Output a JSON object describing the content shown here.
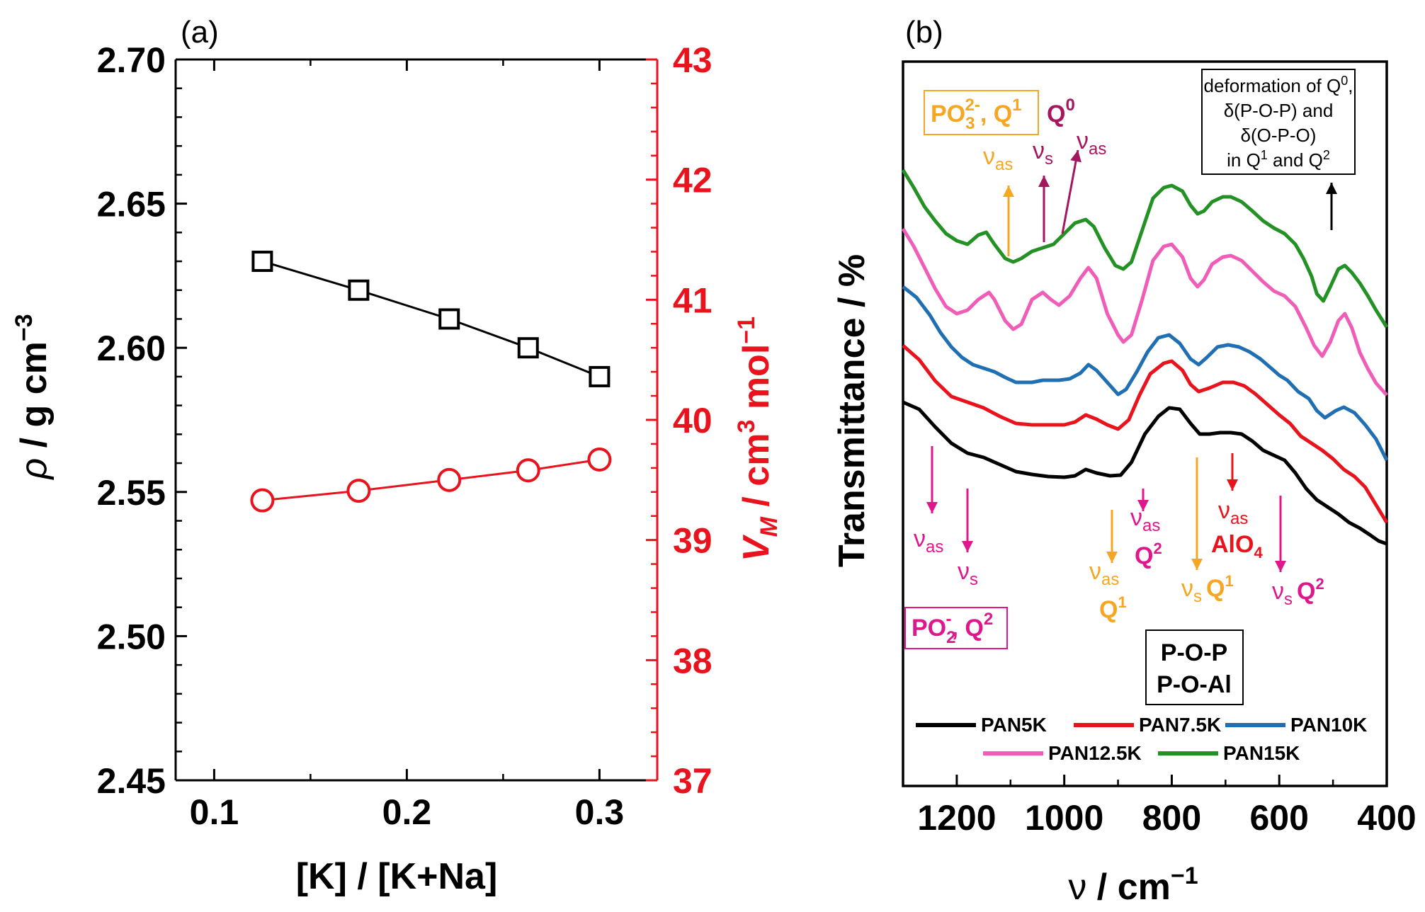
{
  "chart_data": [
    {
      "panel": "(a)",
      "type": "line",
      "xlabel": "[K] / [K+Na]",
      "x_ticks": [
        "0.1",
        "0.2",
        "0.3"
      ],
      "xlim": [
        0.08,
        0.33
      ],
      "y_left": {
        "label_sym": "ρ",
        "label_rest": " / g cm",
        "label_exp": "−3",
        "ylim": [
          2.45,
          2.7
        ],
        "ticks": [
          "2.45",
          "2.50",
          "2.55",
          "2.60",
          "2.65",
          "2.70"
        ]
      },
      "y_right": {
        "label_sym": "V",
        "label_sub": "M",
        "label_mid": " / cm",
        "label_exp1": "3",
        "label_mid2": " mol",
        "label_exp2": "−1",
        "ylim": [
          37,
          43
        ],
        "ticks": [
          "37",
          "38",
          "39",
          "40",
          "41",
          "42",
          "43"
        ],
        "color": "#e8131c"
      },
      "series": [
        {
          "name": "density",
          "axis": "left",
          "marker": "square",
          "color": "#000000",
          "x": [
            0.125,
            0.175,
            0.222,
            0.263,
            0.3
          ],
          "y": [
            2.63,
            2.62,
            2.61,
            2.6,
            2.59
          ]
        },
        {
          "name": "molar volume",
          "axis": "right",
          "marker": "circle",
          "color": "#e8131c",
          "x": [
            0.125,
            0.175,
            0.222,
            0.263,
            0.3
          ],
          "y": [
            39.33,
            39.41,
            39.5,
            39.58,
            39.67
          ]
        }
      ]
    },
    {
      "panel": "(b)",
      "type": "line",
      "xlabel_sym": "ν",
      "xlabel_rest": " / cm",
      "xlabel_exp": "−1",
      "ylabel": "Transmittance / %",
      "xlim": [
        1300,
        400
      ],
      "x_ticks": [
        "1200",
        "1000",
        "800",
        "600",
        "400"
      ],
      "series": [
        {
          "name": "PAN5K",
          "color": "#000000"
        },
        {
          "name": "PAN7.5K",
          "color": "#e8131c"
        },
        {
          "name": "PAN10K",
          "color": "#1f6fb2"
        },
        {
          "name": "PAN12.5K",
          "color": "#f05db8"
        },
        {
          "name": "PAN15K",
          "color": "#239123"
        }
      ],
      "annotations": {
        "box_po3": {
          "main": "PO",
          "sub": "3",
          "sup": "2-",
          "rest": ", Q",
          "sup2": "1"
        },
        "q0": {
          "main": "Q",
          "sup": "0"
        },
        "nu": "ν",
        "as": "as",
        "s": "s",
        "box_po2": {
          "main": "PO",
          "sub": "2",
          "sup": "-",
          "rest": ", Q",
          "sup2": "2"
        },
        "deform": {
          "line1": "deformation of Q",
          "line1_sup": "0",
          "line1_end": ",",
          "line2": "δ(P-O-P) and",
          "line3": "δ(O-P-O)",
          "line4a": "in Q",
          "line4_sup1": "1",
          "line4b": " and Q",
          "line4_sup2": "2"
        },
        "q1": {
          "main": "Q",
          "sup": "1"
        },
        "q2": {
          "main": "Q",
          "sup": "2"
        },
        "alo4": "AlO",
        "alo4_sub": "4",
        "bond1": "P-O-P",
        "bond2": "P-O-Al"
      },
      "colors": {
        "orange": "#f5a623",
        "magenta": "#e0178c",
        "purple": "#a4165e"
      }
    }
  ]
}
